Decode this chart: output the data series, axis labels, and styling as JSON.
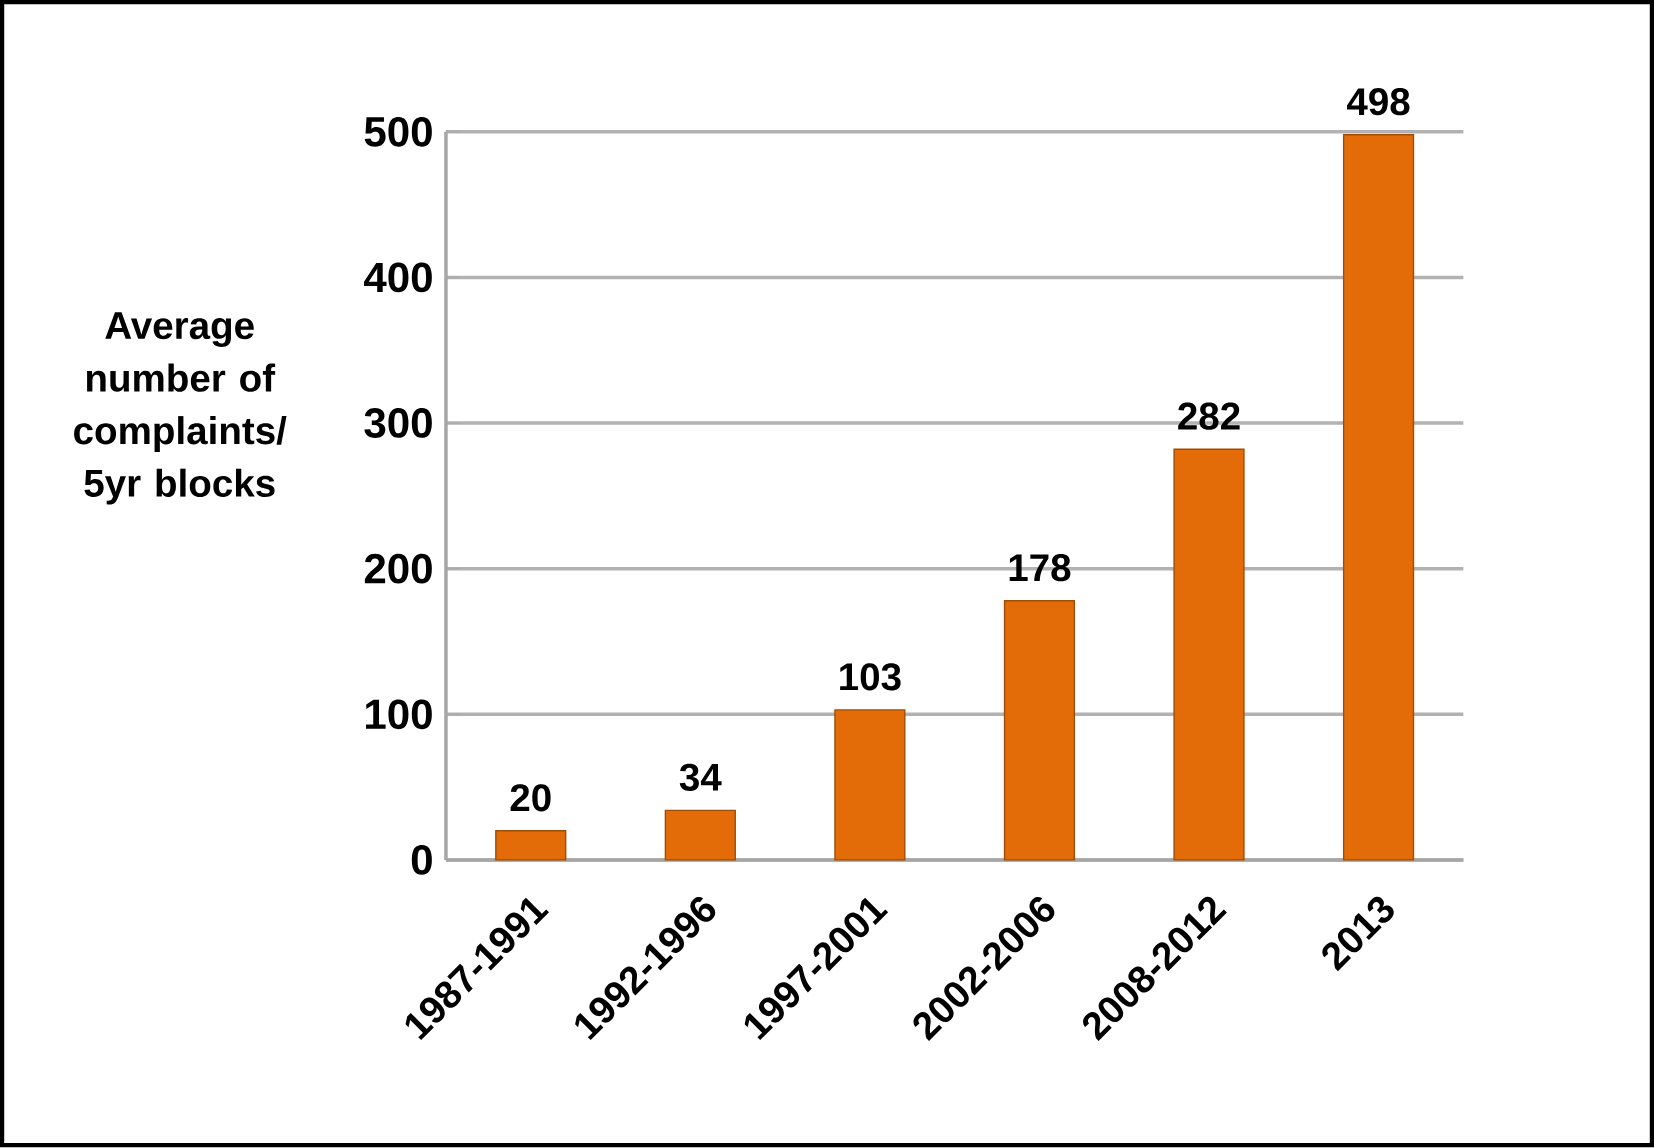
{
  "chart_data": {
    "type": "bar",
    "ylabel": "Average number of complaints/ 5yr blocks",
    "categories": [
      "1987-1991",
      "1992-1996",
      "1997-2001",
      "2002-2006",
      "2008-2012",
      "2013"
    ],
    "values": [
      20,
      34,
      103,
      178,
      282,
      498
    ],
    "color": "#e36c09",
    "ylim": [
      0,
      500
    ],
    "yticks": [
      0,
      100,
      200,
      300,
      400,
      500
    ],
    "grid": "y",
    "data_labels": true
  }
}
